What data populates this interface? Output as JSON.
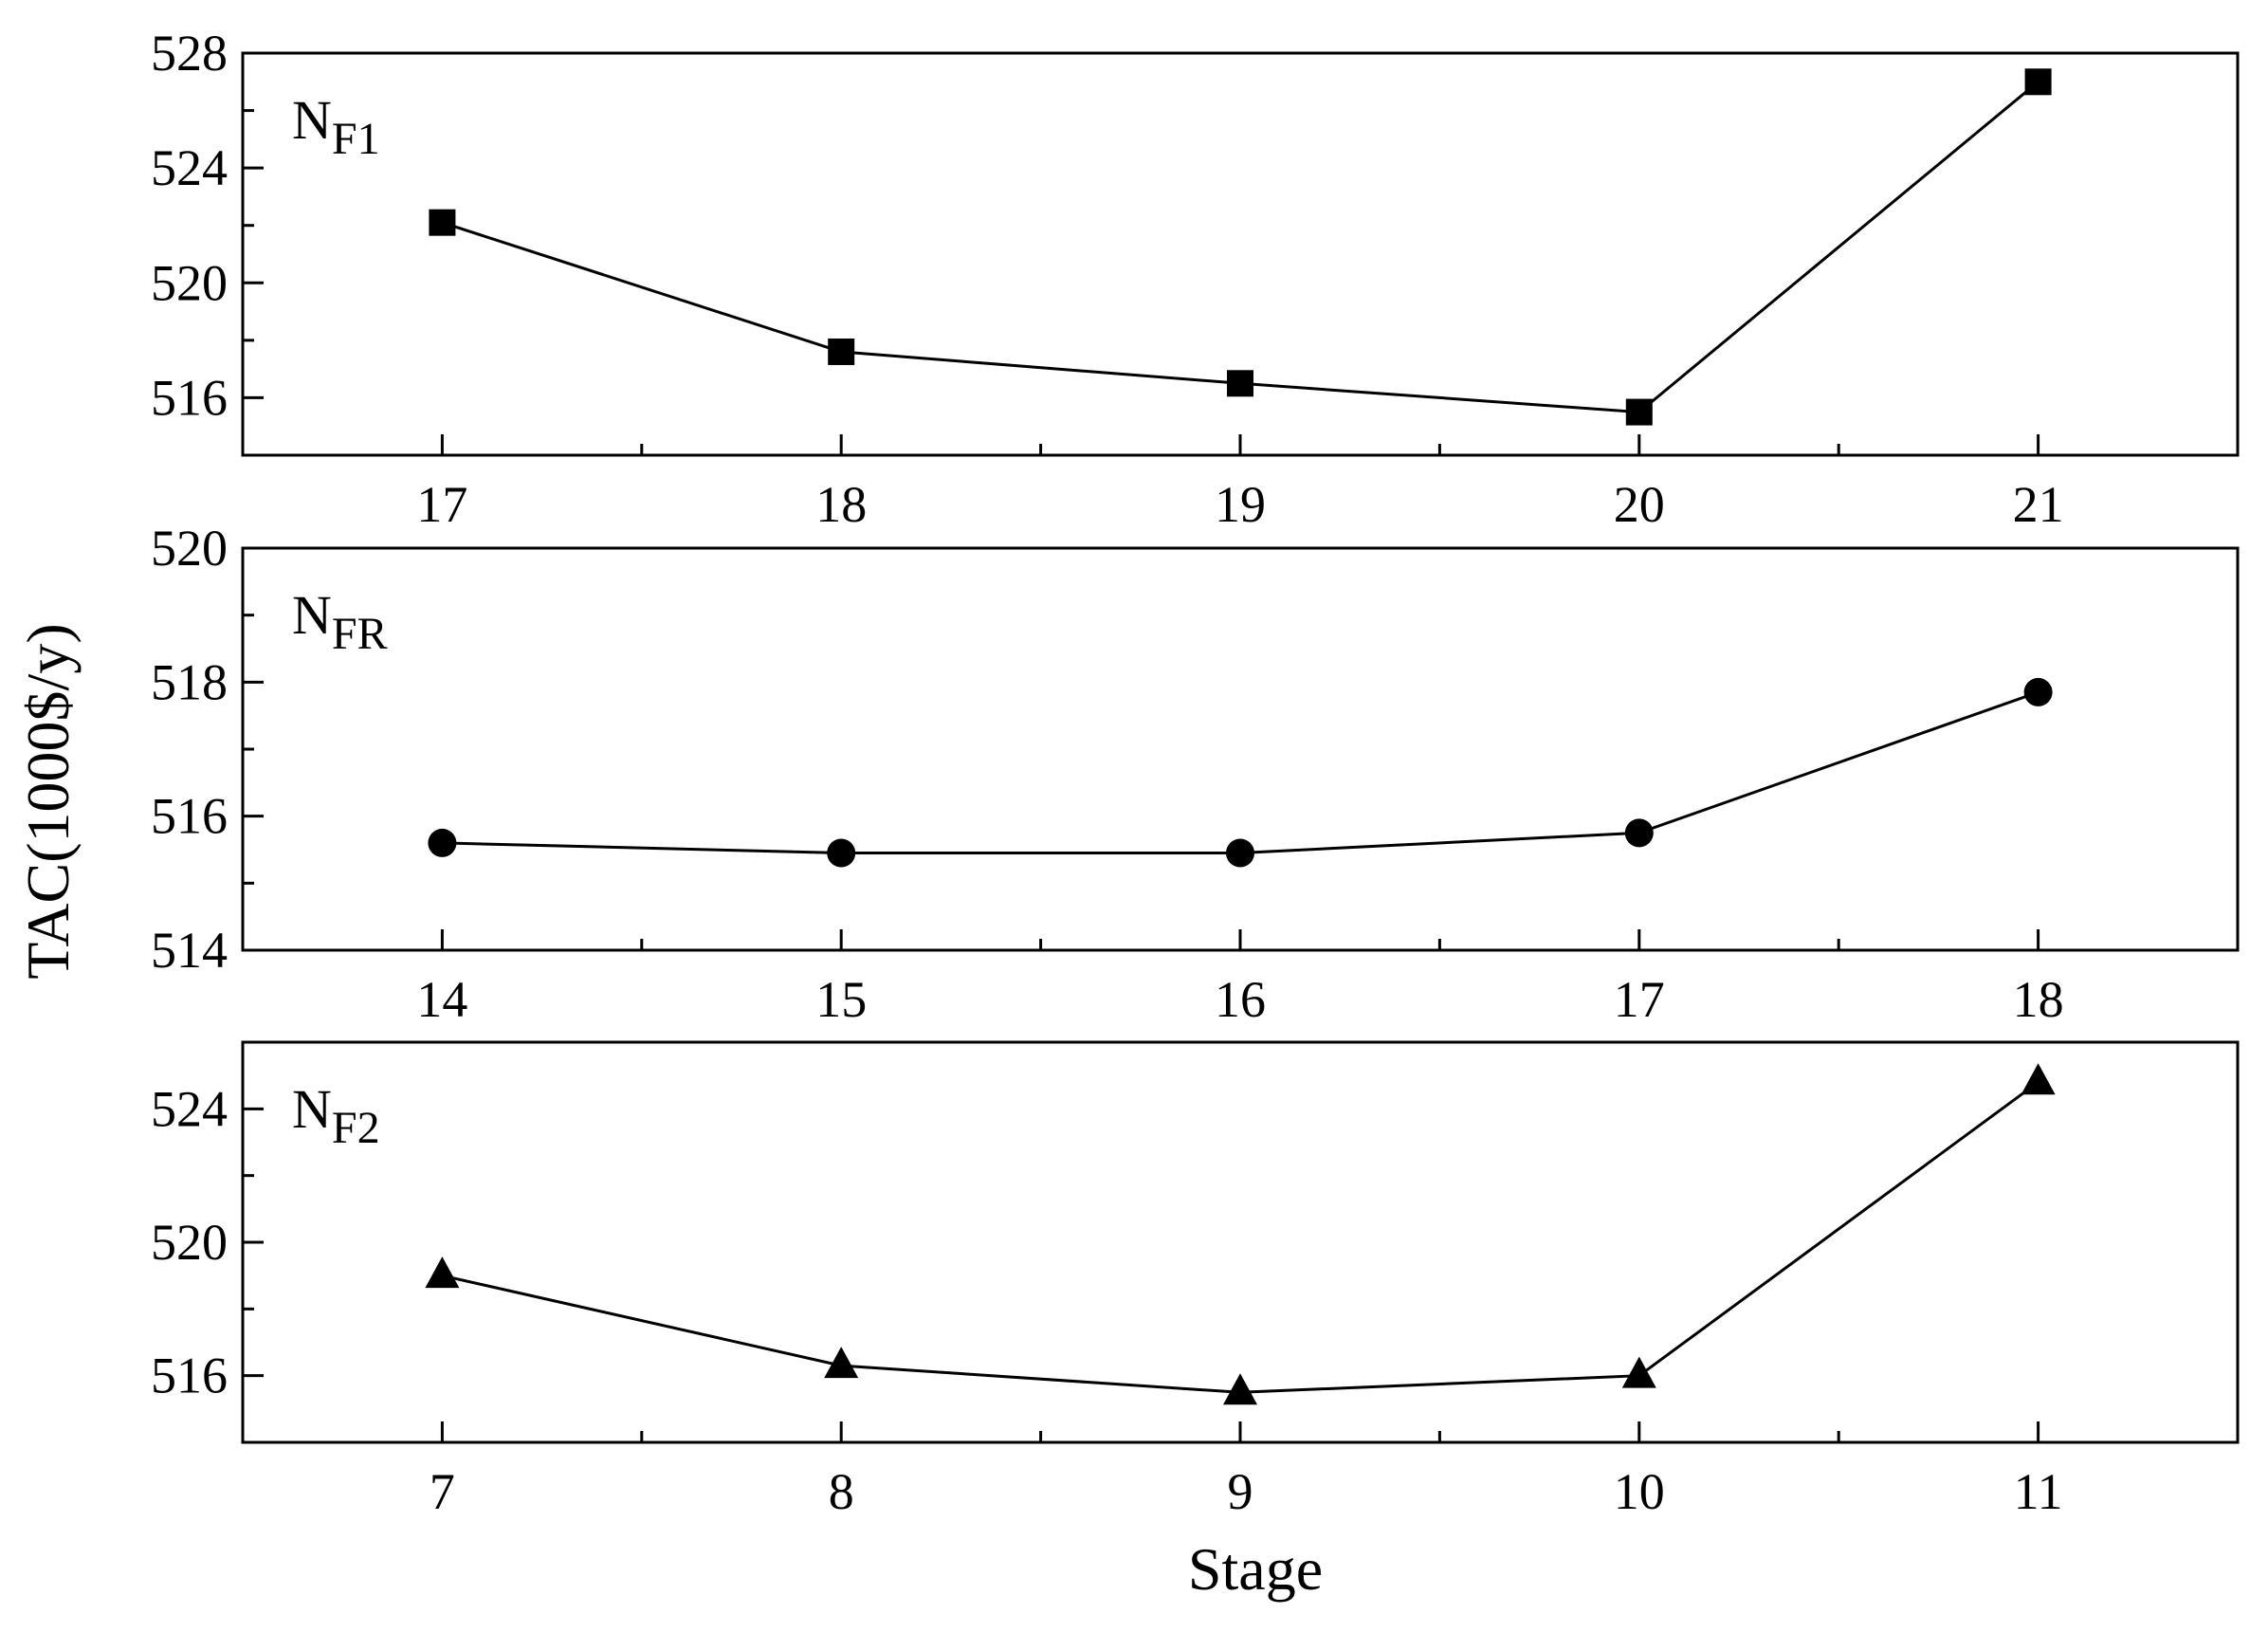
{
  "chart_data": {
    "type": "line",
    "ylabel": "TAC(1000$/y)",
    "xlabel": "Stage",
    "panels": [
      {
        "label_main": "N",
        "label_sub": "F1",
        "marker": "square",
        "x": [
          17,
          18,
          19,
          20,
          21
        ],
        "values": [
          522.1,
          517.6,
          516.5,
          515.5,
          527.0
        ],
        "xlim": [
          16.5,
          21.5
        ],
        "ylim": [
          514,
          528
        ],
        "yticks": [
          516,
          520,
          524,
          528
        ],
        "ytick_labels": [
          "516",
          "520",
          "524",
          "528"
        ],
        "xticks": [
          17,
          18,
          19,
          20,
          21
        ],
        "xtick_labels": [
          "17",
          "18",
          "19",
          "20",
          "21"
        ]
      },
      {
        "label_main": "N",
        "label_sub": "FR",
        "marker": "circle",
        "x": [
          14,
          15,
          16,
          17,
          18
        ],
        "values": [
          515.6,
          515.45,
          515.45,
          515.75,
          517.85
        ],
        "xlim": [
          13.5,
          18.5
        ],
        "ylim": [
          514,
          520
        ],
        "yticks": [
          514,
          516,
          518,
          520
        ],
        "ytick_labels": [
          "514",
          "516",
          "518",
          "520"
        ],
        "xticks": [
          14,
          15,
          16,
          17,
          18
        ],
        "xtick_labels": [
          "14",
          "15",
          "16",
          "17",
          "18"
        ]
      },
      {
        "label_main": "N",
        "label_sub": "F2",
        "marker": "triangle",
        "x": [
          7,
          8,
          9,
          10,
          11
        ],
        "values": [
          519.0,
          516.3,
          515.5,
          516.0,
          524.8
        ],
        "xlim": [
          6.5,
          11.5
        ],
        "ylim": [
          514,
          526
        ],
        "yticks": [
          516,
          520,
          524
        ],
        "ytick_labels": [
          "516",
          "520",
          "524"
        ],
        "xticks": [
          7,
          8,
          9,
          10,
          11
        ],
        "xtick_labels": [
          "7",
          "8",
          "9",
          "10",
          "11"
        ]
      }
    ],
    "grid": false,
    "colors": {
      "line": "#000000",
      "marker": "#000000",
      "frame": "#000000"
    }
  }
}
